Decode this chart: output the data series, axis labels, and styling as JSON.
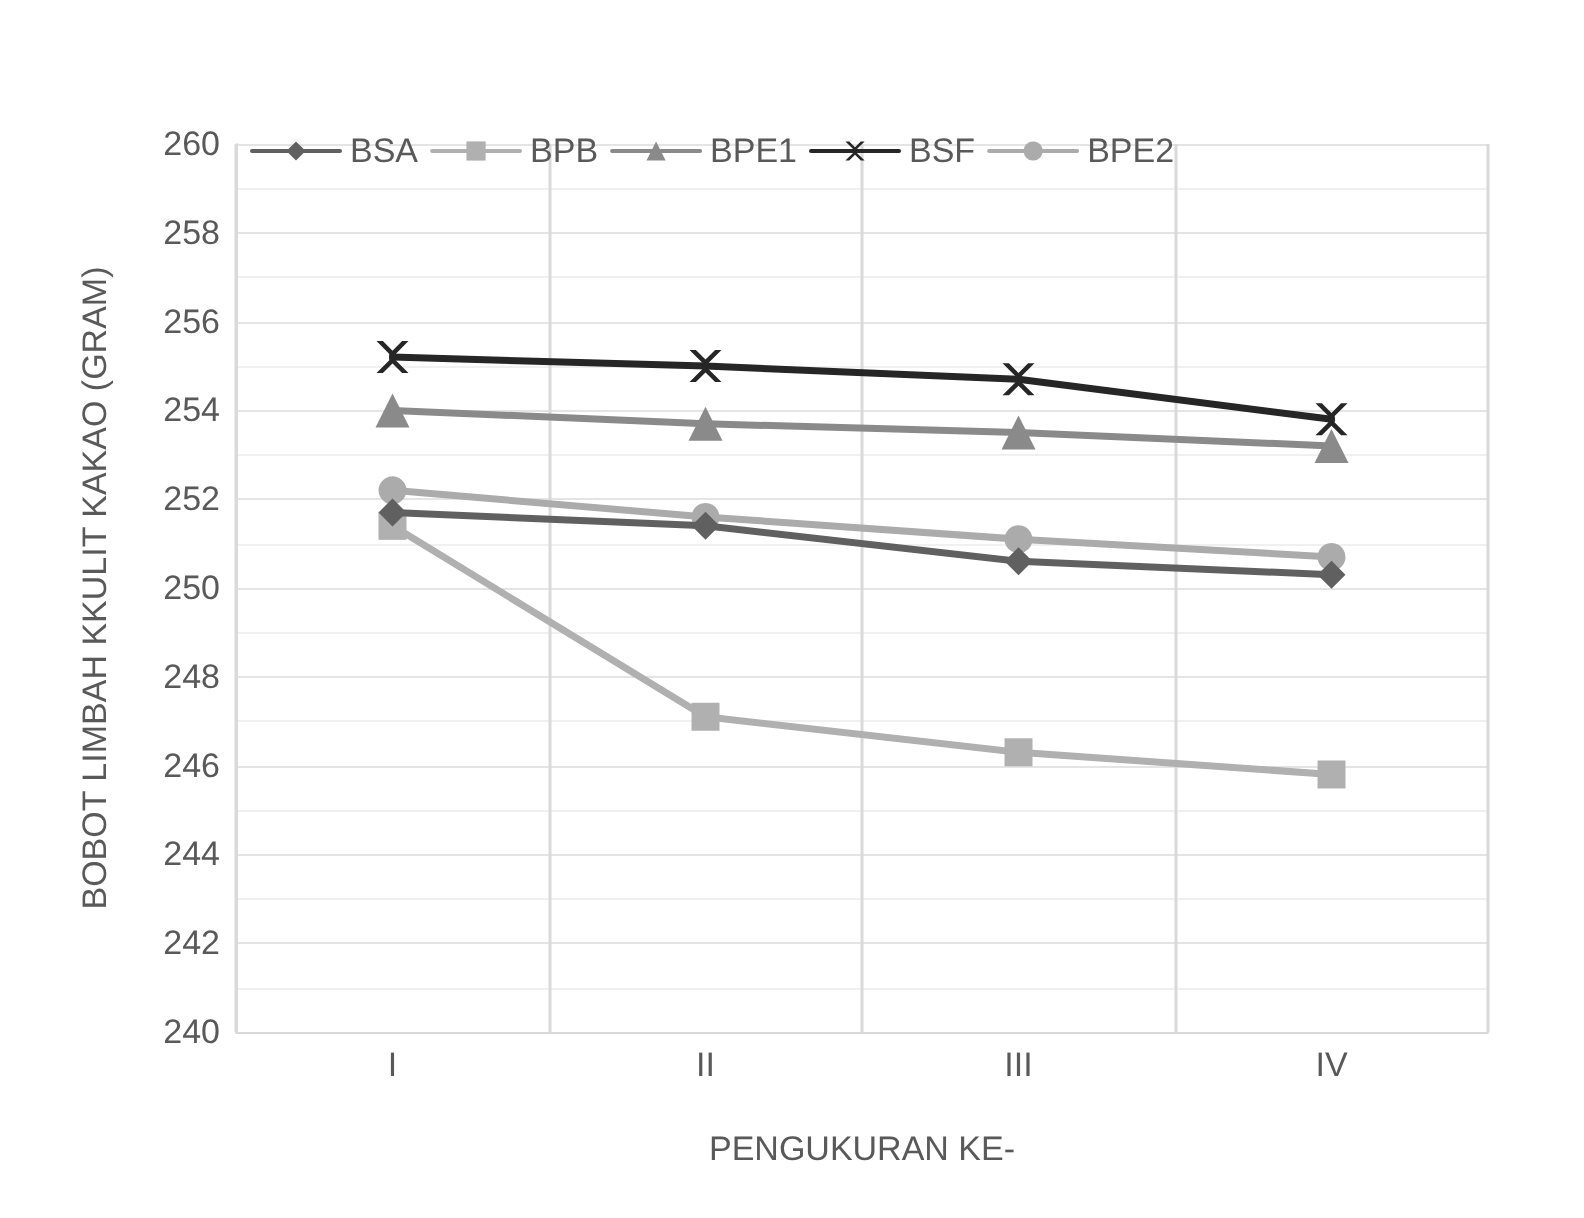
{
  "chart_data": {
    "type": "line",
    "xlabel": "PENGUKURAN KE-",
    "ylabel": "BOBOT LIMBAH KKULIT KAKAO (GRAM)",
    "categories": [
      "I",
      "II",
      "III",
      "IV"
    ],
    "series": [
      {
        "name": "BSA",
        "color": "#606060",
        "marker": "diamond",
        "values": [
          251.7,
          251.4,
          250.6,
          250.3
        ]
      },
      {
        "name": "BPB",
        "color": "#b0b0b0",
        "marker": "square",
        "values": [
          251.4,
          247.1,
          246.3,
          245.8
        ]
      },
      {
        "name": "BPE1",
        "color": "#8a8a8a",
        "marker": "triangle",
        "values": [
          254.0,
          253.7,
          253.5,
          253.2
        ]
      },
      {
        "name": "BSF",
        "color": "#262626",
        "marker": "cross",
        "values": [
          255.2,
          255.0,
          254.7,
          253.8
        ]
      },
      {
        "name": "BPE2",
        "color": "#ababab",
        "marker": "circle",
        "values": [
          252.2,
          251.6,
          251.1,
          250.7
        ]
      }
    ],
    "ylim": [
      240,
      260
    ],
    "yticks": [
      240,
      242,
      244,
      246,
      248,
      250,
      252,
      254,
      256,
      258,
      260
    ],
    "grid": true,
    "legend": "top",
    "line_style": "solid"
  }
}
